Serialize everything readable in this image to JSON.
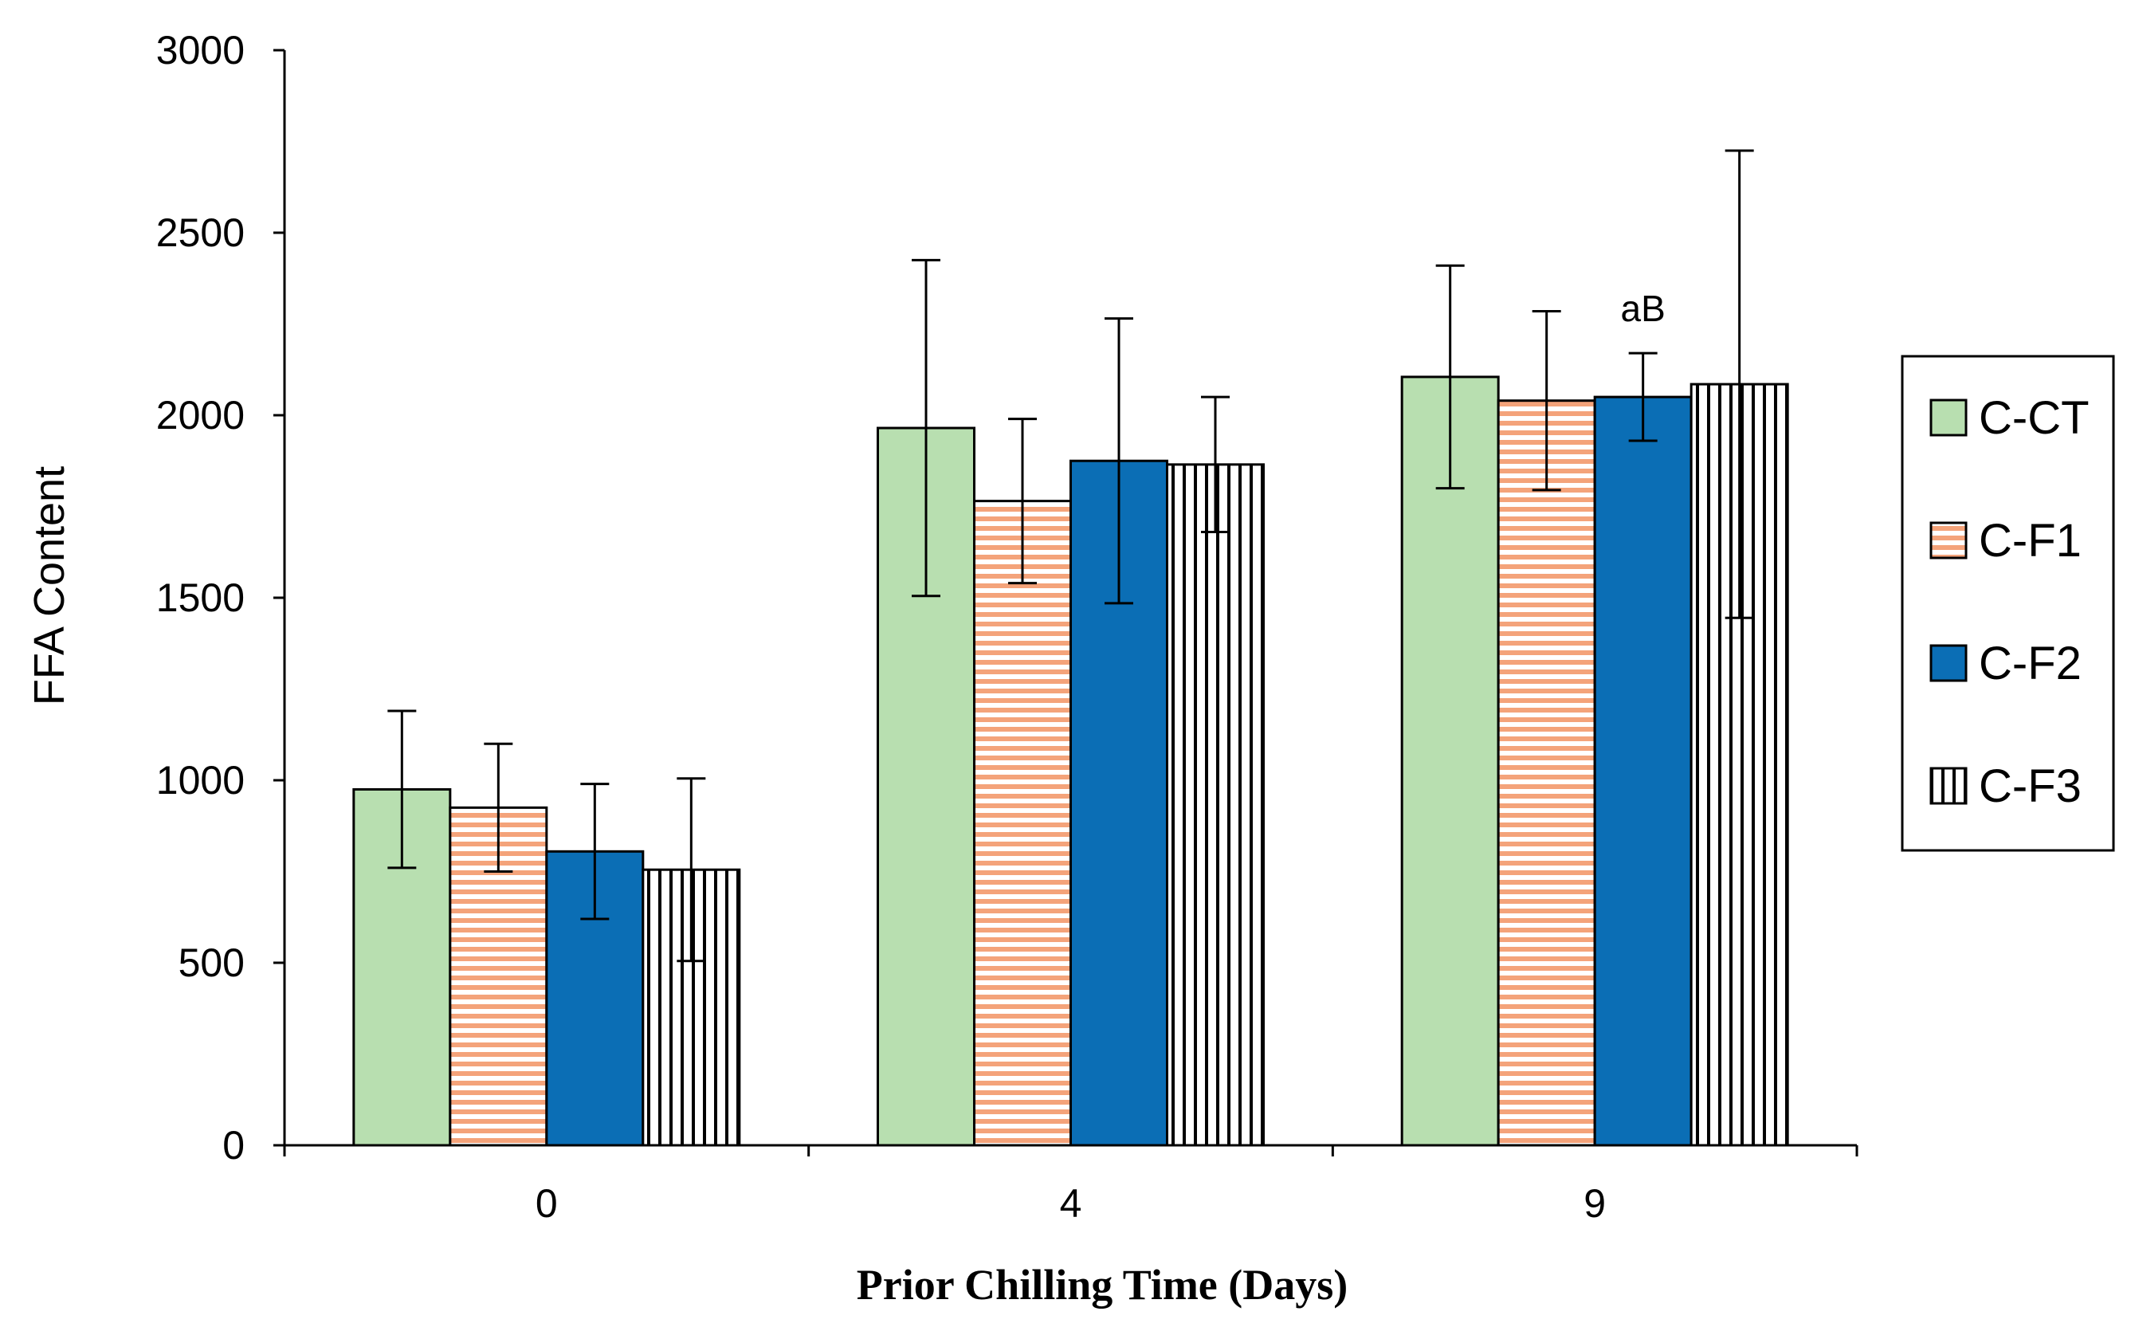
{
  "chart_data": {
    "type": "bar",
    "title": "",
    "xlabel": "Prior Chilling Time (Days)",
    "ylabel": "FFA Content",
    "ylim": [
      0,
      3000
    ],
    "yticks": [
      0,
      500,
      1000,
      1500,
      2000,
      2500,
      3000
    ],
    "categories": [
      "0",
      "4",
      "9"
    ],
    "series": [
      {
        "name": "C-CT",
        "pattern": "solid",
        "color": "#b8dfb0",
        "values": [
          975,
          1965,
          2105
        ],
        "errors": [
          215,
          460,
          305
        ]
      },
      {
        "name": "C-F1",
        "pattern": "horizontal-stripes",
        "color": "#f4a37a",
        "values": [
          925,
          1765,
          2040
        ],
        "errors": [
          175,
          225,
          245
        ]
      },
      {
        "name": "C-F2",
        "pattern": "solid",
        "color": "#0b6eb5",
        "values": [
          805,
          1875,
          2050
        ],
        "errors": [
          185,
          390,
          120
        ]
      },
      {
        "name": "C-F3",
        "pattern": "vertical-stripes",
        "color": "#000000",
        "values": [
          755,
          1865,
          2085
        ],
        "errors": [
          250,
          185,
          640
        ]
      }
    ],
    "annotations": [
      {
        "text": "aB",
        "category": "9",
        "series": "C-F2"
      }
    ],
    "legend_position": "right",
    "grid": false
  }
}
